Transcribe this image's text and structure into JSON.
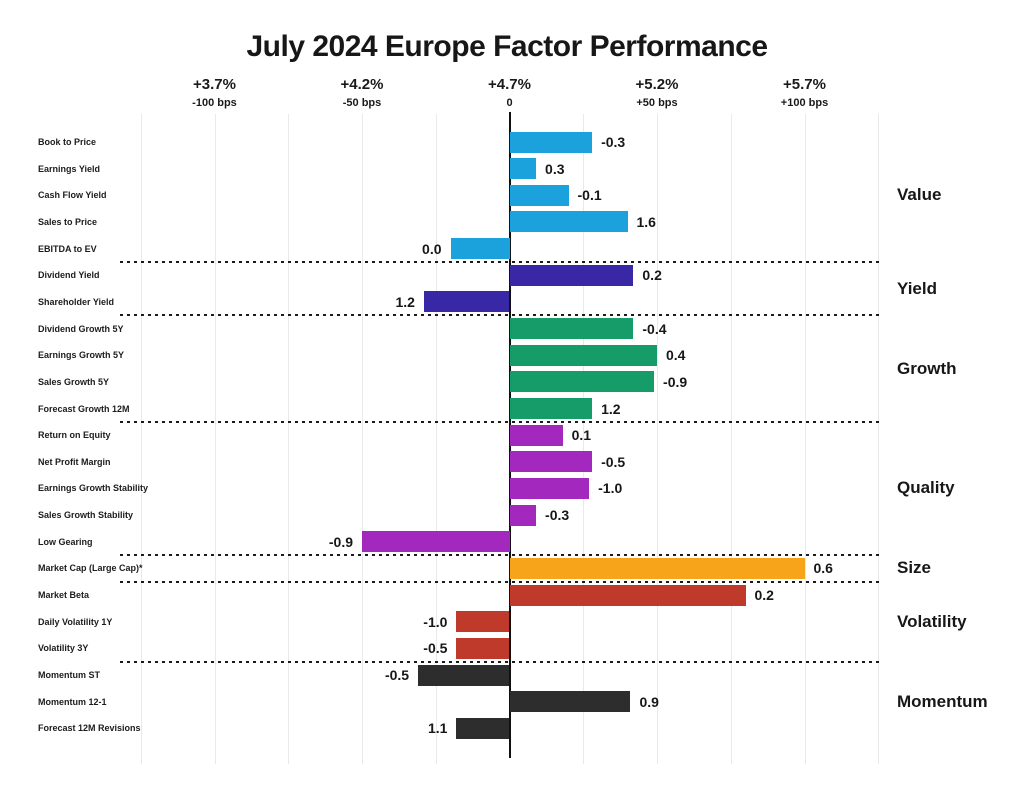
{
  "title": "July 2024 Europe Factor Performance",
  "chart_data": {
    "type": "bar",
    "orientation": "horizontal",
    "title": "July 2024 Europe Factor Performance",
    "x_axis": {
      "unit": "bps",
      "ticks": [
        {
          "pct": "+3.7%",
          "bps_label": "-100 bps",
          "bps": -100
        },
        {
          "pct": "+4.2%",
          "bps_label": "-50 bps",
          "bps": -50
        },
        {
          "pct": "+4.7%",
          "bps_label": "0",
          "bps": 0
        },
        {
          "pct": "+5.2%",
          "bps_label": "+50 bps",
          "bps": 50
        },
        {
          "pct": "+5.7%",
          "bps_label": "+100 bps",
          "bps": 100
        }
      ],
      "range_bps": [
        -125,
        125
      ],
      "minor_gridline_step_bps": 25,
      "grid": true
    },
    "group_label_position": "right",
    "groups": [
      {
        "name": "Value",
        "color": "#1BA2DC",
        "rows": [
          {
            "factor": "Book to Price",
            "value_label": "-0.3",
            "bar_bps": 28
          },
          {
            "factor": "Earnings Yield",
            "value_label": "0.3",
            "bar_bps": 9
          },
          {
            "factor": "Cash Flow Yield",
            "value_label": "-0.1",
            "bar_bps": 20
          },
          {
            "factor": "Sales to Price",
            "value_label": "1.6",
            "bar_bps": 40
          },
          {
            "factor": "EBITDA to EV",
            "value_label": "0.0",
            "bar_bps": -20
          }
        ]
      },
      {
        "name": "Yield",
        "color": "#3928A6",
        "rows": [
          {
            "factor": "Dividend Yield",
            "value_label": "0.2",
            "bar_bps": 42
          },
          {
            "factor": "Shareholder Yield",
            "value_label": "1.2",
            "bar_bps": -29
          }
        ]
      },
      {
        "name": "Growth",
        "color": "#169C69",
        "rows": [
          {
            "factor": "Dividend Growth 5Y",
            "value_label": "-0.4",
            "bar_bps": 42
          },
          {
            "factor": "Earnings Growth 5Y",
            "value_label": "0.4",
            "bar_bps": 50
          },
          {
            "factor": "Sales Growth 5Y",
            "value_label": "-0.9",
            "bar_bps": 49
          },
          {
            "factor": "Forecast Growth 12M",
            "value_label": "1.2",
            "bar_bps": 28
          }
        ]
      },
      {
        "name": "Quality",
        "color": "#A228BE",
        "rows": [
          {
            "factor": "Return on Equity",
            "value_label": "0.1",
            "bar_bps": 18
          },
          {
            "factor": "Net Profit Margin",
            "value_label": "-0.5",
            "bar_bps": 28
          },
          {
            "factor": "Earnings Growth Stability",
            "value_label": "-1.0",
            "bar_bps": 27
          },
          {
            "factor": "Sales Growth Stability",
            "value_label": "-0.3",
            "bar_bps": 9
          },
          {
            "factor": "Low Gearing",
            "value_label": "-0.9",
            "bar_bps": -50
          }
        ]
      },
      {
        "name": "Size",
        "color": "#F8A41B",
        "rows": [
          {
            "factor": "Market Cap (Large Cap)*",
            "value_label": "0.6",
            "bar_bps": 100
          }
        ]
      },
      {
        "name": "Volatility",
        "color": "#C03A2B",
        "rows": [
          {
            "factor": "Market Beta",
            "value_label": "0.2",
            "bar_bps": 80
          },
          {
            "factor": "Daily Volatility 1Y",
            "value_label": "-1.0",
            "bar_bps": -18
          },
          {
            "factor": "Volatility 3Y",
            "value_label": "-0.5",
            "bar_bps": -18
          }
        ]
      },
      {
        "name": "Momentum",
        "color": "#2E2D2D",
        "rows": [
          {
            "factor": "Momentum ST",
            "value_label": "-0.5",
            "bar_bps": -31
          },
          {
            "factor": "Momentum 12-1",
            "value_label": "0.9",
            "bar_bps": 41
          },
          {
            "factor": "Forecast 12M Revisions",
            "value_label": "1.1",
            "bar_bps": -18
          }
        ]
      }
    ]
  }
}
